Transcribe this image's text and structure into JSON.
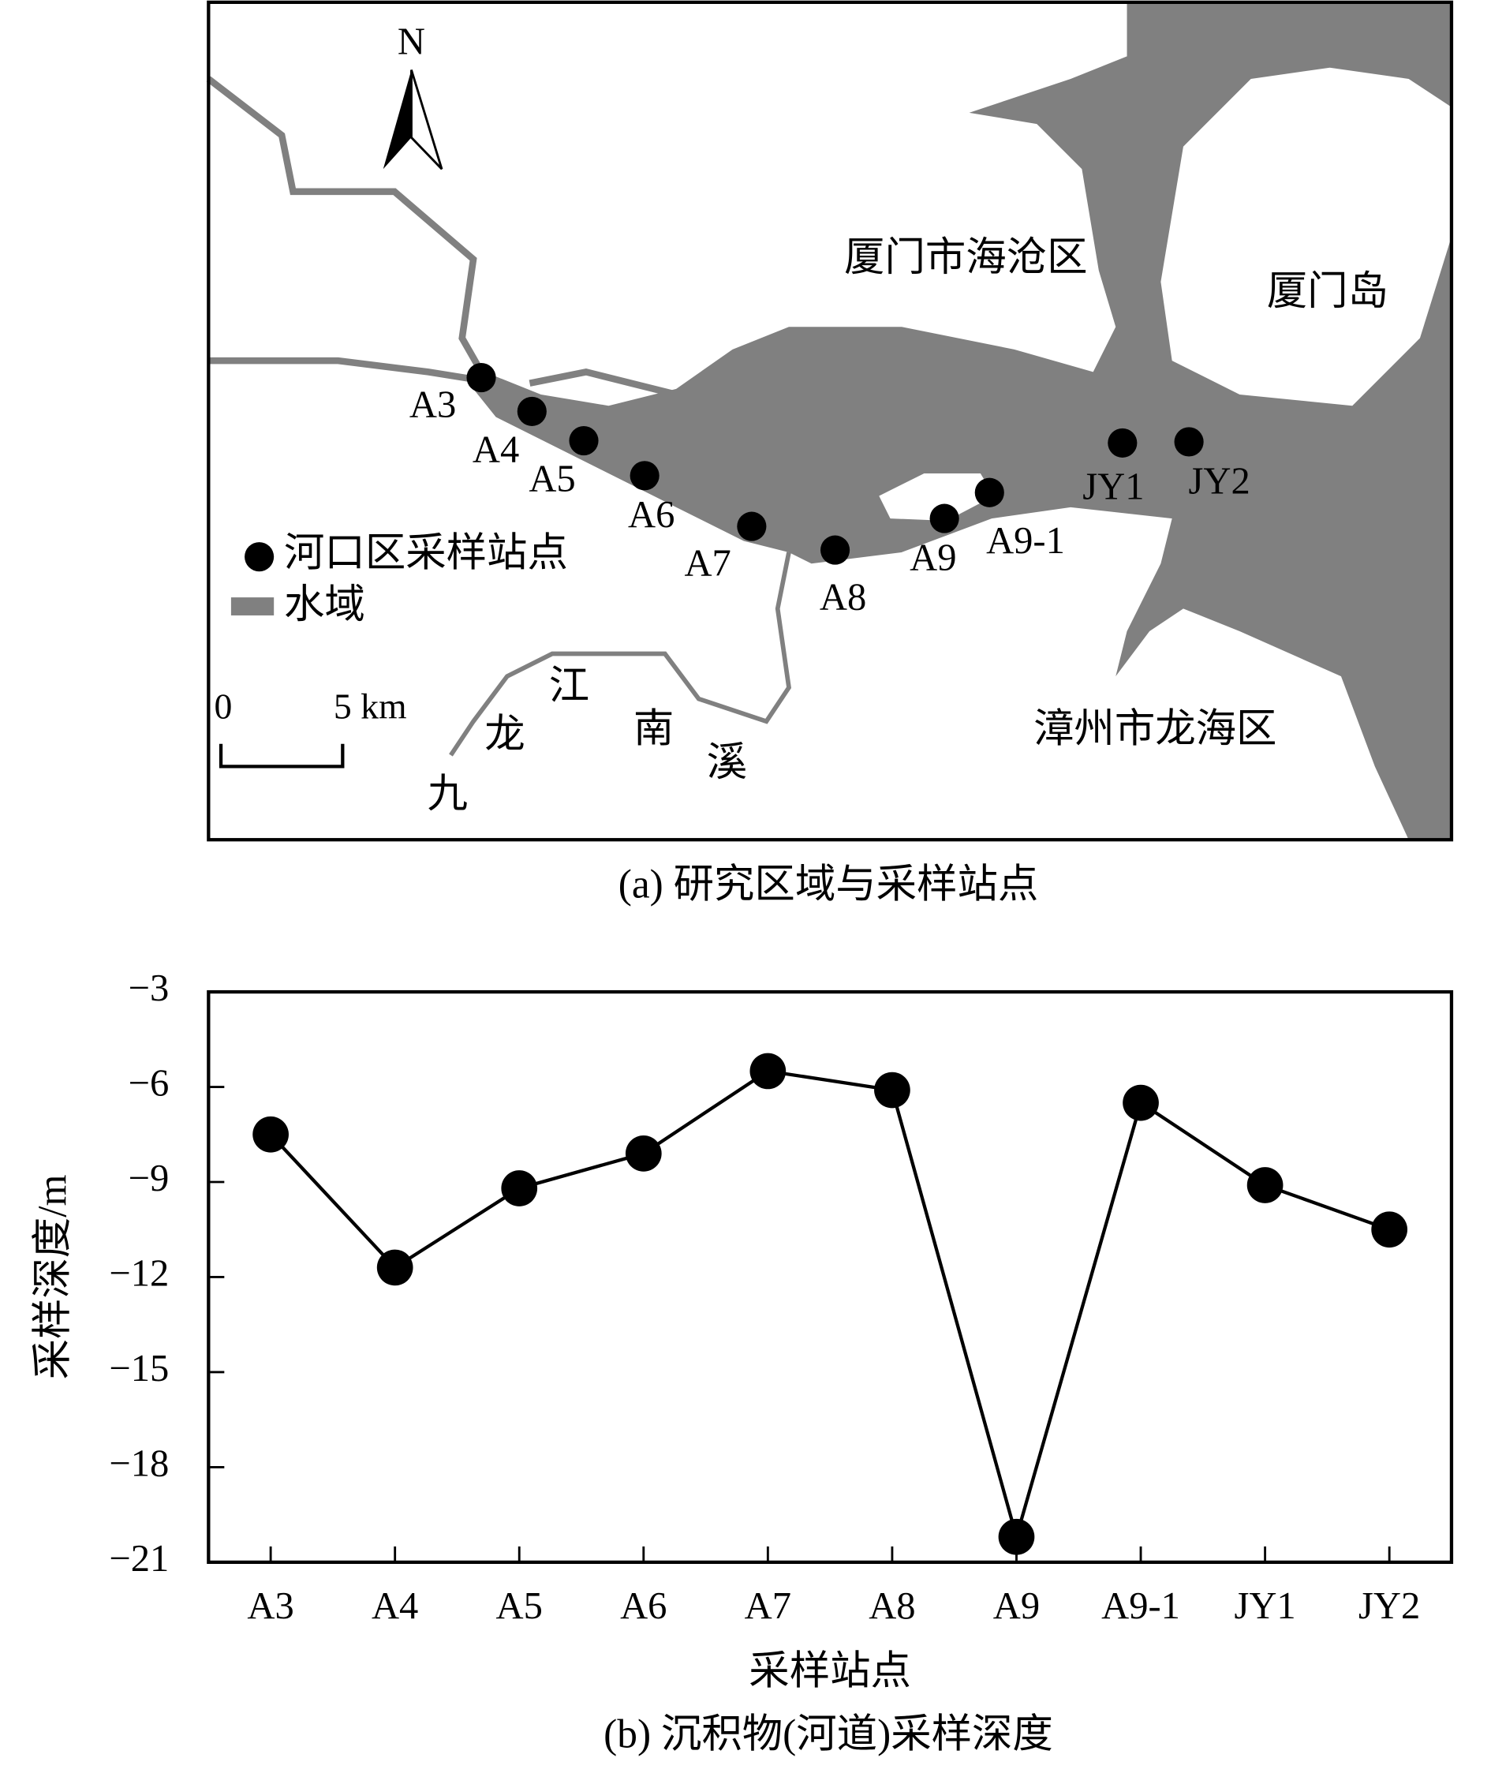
{
  "map": {
    "north": "N",
    "regions": [
      "厦门市海沧区",
      "厦门岛",
      "漳州市龙海区"
    ],
    "river_chars": [
      "九",
      "龙",
      "江",
      "南",
      "溪"
    ],
    "stations": [
      "A3",
      "A4",
      "A5",
      "A6",
      "A7",
      "A8",
      "A9",
      "A9-1",
      "JY1",
      "JY2"
    ],
    "legend": {
      "stations": "河口区采样站点",
      "water": "水域"
    },
    "scale": {
      "start": "0",
      "end": "5 km"
    },
    "caption": "(a) 研究区域与采样站点"
  },
  "chart_data": {
    "type": "line",
    "title": "(b) 沉积物(河道)采样深度",
    "x_label": "采样站点",
    "y_label": "采样深度/m",
    "categories": [
      "A3",
      "A4",
      "A5",
      "A6",
      "A7",
      "A8",
      "A9",
      "A9-1",
      "JY1",
      "JY2"
    ],
    "values": [
      -7.5,
      -11.7,
      -9.2,
      -8.1,
      -5.5,
      -6.1,
      -20.2,
      -6.5,
      -9.1,
      -10.5
    ],
    "color": "#000000",
    "ylim": [
      -21,
      -3
    ],
    "yticks": [
      {
        "value": -3,
        "label": "−3"
      },
      {
        "value": -6,
        "label": "−6"
      },
      {
        "value": -9,
        "label": "−9"
      },
      {
        "value": -12,
        "label": "−12"
      },
      {
        "value": -15,
        "label": "−15"
      },
      {
        "value": -18,
        "label": "−18"
      },
      {
        "value": -21,
        "label": "−21"
      }
    ],
    "grid": false
  }
}
